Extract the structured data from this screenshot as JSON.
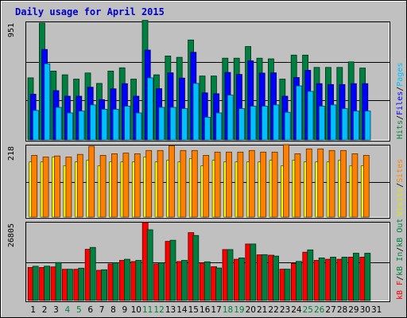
{
  "chart_data": {
    "type": "bar",
    "title": "Daily usage for April 2015",
    "categories": [
      "1",
      "2",
      "3",
      "4",
      "5",
      "6",
      "7",
      "8",
      "9",
      "10",
      "11",
      "12",
      "13",
      "14",
      "15",
      "16",
      "17",
      "18",
      "19",
      "20",
      "21",
      "22",
      "23",
      "24",
      "25",
      "26",
      "27",
      "28",
      "29",
      "30",
      "31"
    ],
    "weekend_days": [
      "4",
      "5",
      "11",
      "12",
      "18",
      "19",
      "25",
      "26"
    ],
    "panels": [
      {
        "id": "hits",
        "max_label": "951",
        "ylim": [
          0,
          951
        ],
        "axis_labels": [
          {
            "text": "Hits",
            "color": "#008040"
          },
          {
            "text": "/",
            "color": "#000000"
          },
          {
            "text": "Files",
            "color": "#0000ff"
          },
          {
            "text": "/",
            "color": "#000000"
          },
          {
            "text": "Pages",
            "color": "#00c0ff"
          }
        ],
        "series": [
          {
            "name": "Hits",
            "color": "#008040",
            "values": [
              505,
              951,
              560,
              530,
              495,
              545,
              460,
              560,
              587,
              495,
              973,
              530,
              683,
              672,
              813,
              520,
              520,
              665,
              665,
              760,
              665,
              660,
              495,
              690,
              690,
              590,
              590,
              590,
              635,
              585,
              0
            ]
          },
          {
            "name": "Files",
            "color": "#0000ff",
            "values": [
              372,
              736,
              401,
              356,
              356,
              429,
              328,
              416,
              458,
              356,
              731,
              417,
              546,
              503,
              713,
              383,
              376,
              549,
              533,
              644,
              544,
              546,
              356,
              508,
              567,
              458,
              451,
              451,
              458,
              458,
              0
            ]
          },
          {
            "name": "Pages",
            "color": "#00c0ff",
            "values": [
              240,
              620,
              265,
              220,
              235,
              285,
              250,
              250,
              275,
              220,
              505,
              265,
              265,
              255,
              460,
              185,
              220,
              365,
              255,
              275,
              275,
              285,
              225,
              440,
              395,
              275,
              285,
              255,
              235,
              235,
              0
            ]
          }
        ]
      },
      {
        "id": "visits",
        "max_label": "218",
        "ylim": [
          0,
          218
        ],
        "axis_labels": [
          {
            "text": "Visits",
            "color": "#e0e000"
          },
          {
            "text": "/",
            "color": "#000000"
          },
          {
            "text": "Sites",
            "color": "#ff8000"
          }
        ],
        "series": [
          {
            "name": "Visits",
            "color": "#ffff00",
            "values": [
              170,
              170,
              185,
              158,
              170,
              175,
              158,
              170,
              170,
              170,
              185,
              170,
              175,
              170,
              180,
              158,
              175,
              170,
              170,
              170,
              170,
              175,
              158,
              175,
              170,
              170,
              170,
              175,
              158,
              158,
              0
            ]
          },
          {
            "name": "Sites",
            "color": "#ff8000",
            "values": [
              190,
              185,
              188,
              185,
              193,
              218,
              190,
              195,
              197,
              195,
              205,
              205,
              220,
              205,
              205,
              190,
              200,
              200,
              200,
              205,
              200,
              200,
              223,
              195,
              210,
              210,
              205,
              205,
              195,
              190,
              0
            ]
          }
        ]
      },
      {
        "id": "kbytes",
        "max_label": "26805",
        "ylim": [
          0,
          26805
        ],
        "axis_labels": [
          {
            "text": "KBytes F",
            "short": "kB F",
            "color": "#ff0000"
          },
          {
            "text": "/",
            "color": "#000000"
          },
          {
            "text": "kB In",
            "color": "#008040"
          },
          {
            "text": "/",
            "color": "#000000"
          },
          {
            "text": "kB Out",
            "color": "#008040"
          }
        ],
        "series": [
          {
            "name": "kB F",
            "color": "#ff0000",
            "values": [
              11500,
              11500,
              11700,
              10850,
              10850,
              17800,
              10500,
              12700,
              13950,
              13550,
              27100,
              12700,
              20550,
              13550,
              23600,
              13050,
              11750,
              17700,
              14350,
              19650,
              15900,
              15750,
              10900,
              12900,
              16800,
              13950,
              14350,
              14350,
              15100,
              15100,
              0
            ]
          },
          {
            "name": "kB Out",
            "color": "#008040",
            "values": [
              11900,
              11950,
              13200,
              10850,
              11250,
              18450,
              10700,
              13100,
              14350,
              13950,
              24600,
              13100,
              20950,
              13950,
              22600,
              13450,
              11300,
              17700,
              14800,
              19650,
              15950,
              15450,
              10900,
              13600,
              17600,
              14800,
              15100,
              15100,
              16450,
              16450,
              0
            ]
          }
        ]
      }
    ]
  }
}
